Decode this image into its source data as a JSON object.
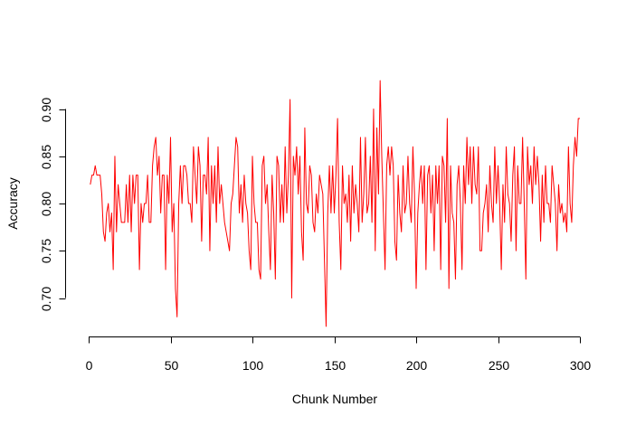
{
  "chart_data": {
    "type": "line",
    "title": "",
    "xlabel": "Chunk Number",
    "ylabel": "Accuracy",
    "xlim": [
      0,
      300
    ],
    "ylim": [
      0.66,
      0.935
    ],
    "x_ticks": [
      0,
      50,
      100,
      150,
      200,
      250,
      300
    ],
    "x_tick_labels": [
      "0",
      "50",
      "100",
      "150",
      "200",
      "250",
      "300"
    ],
    "y_ticks": [
      0.7,
      0.75,
      0.8,
      0.85,
      0.9
    ],
    "y_tick_labels": [
      "0.70",
      "0.75",
      "0.80",
      "0.85",
      "0.90"
    ],
    "grid": false,
    "series": [
      {
        "color": "#ff0000",
        "x_start": 1,
        "x_step": 1,
        "values": [
          0.82,
          0.83,
          0.83,
          0.84,
          0.83,
          0.83,
          0.83,
          0.81,
          0.77,
          0.76,
          0.79,
          0.8,
          0.77,
          0.79,
          0.73,
          0.85,
          0.77,
          0.82,
          0.8,
          0.78,
          0.78,
          0.78,
          0.82,
          0.78,
          0.83,
          0.77,
          0.83,
          0.8,
          0.83,
          0.83,
          0.73,
          0.8,
          0.78,
          0.8,
          0.8,
          0.83,
          0.78,
          0.78,
          0.84,
          0.86,
          0.87,
          0.83,
          0.85,
          0.79,
          0.83,
          0.83,
          0.73,
          0.83,
          0.8,
          0.87,
          0.77,
          0.8,
          0.71,
          0.68,
          0.8,
          0.84,
          0.8,
          0.84,
          0.84,
          0.83,
          0.8,
          0.8,
          0.78,
          0.86,
          0.83,
          0.8,
          0.86,
          0.84,
          0.76,
          0.83,
          0.83,
          0.81,
          0.87,
          0.75,
          0.84,
          0.8,
          0.84,
          0.78,
          0.86,
          0.8,
          0.82,
          0.8,
          0.78,
          0.77,
          0.76,
          0.75,
          0.8,
          0.81,
          0.84,
          0.87,
          0.86,
          0.79,
          0.82,
          0.78,
          0.83,
          0.8,
          0.79,
          0.75,
          0.73,
          0.85,
          0.8,
          0.78,
          0.78,
          0.73,
          0.72,
          0.84,
          0.85,
          0.8,
          0.82,
          0.77,
          0.73,
          0.83,
          0.79,
          0.72,
          0.85,
          0.84,
          0.78,
          0.82,
          0.78,
          0.86,
          0.79,
          0.83,
          0.91,
          0.7,
          0.85,
          0.83,
          0.86,
          0.81,
          0.85,
          0.77,
          0.74,
          0.88,
          0.8,
          0.79,
          0.84,
          0.83,
          0.78,
          0.77,
          0.81,
          0.79,
          0.83,
          0.82,
          0.81,
          0.74,
          0.67,
          0.79,
          0.84,
          0.79,
          0.84,
          0.79,
          0.83,
          0.89,
          0.78,
          0.73,
          0.84,
          0.8,
          0.81,
          0.78,
          0.83,
          0.76,
          0.84,
          0.79,
          0.82,
          0.8,
          0.77,
          0.87,
          0.78,
          0.81,
          0.87,
          0.79,
          0.8,
          0.85,
          0.78,
          0.9,
          0.75,
          0.88,
          0.81,
          0.93,
          0.85,
          0.79,
          0.73,
          0.84,
          0.86,
          0.83,
          0.86,
          0.84,
          0.76,
          0.74,
          0.83,
          0.79,
          0.77,
          0.84,
          0.79,
          0.8,
          0.85,
          0.8,
          0.78,
          0.86,
          0.81,
          0.71,
          0.79,
          0.82,
          0.84,
          0.8,
          0.84,
          0.73,
          0.83,
          0.84,
          0.79,
          0.83,
          0.75,
          0.84,
          0.8,
          0.84,
          0.73,
          0.85,
          0.84,
          0.78,
          0.89,
          0.71,
          0.84,
          0.79,
          0.78,
          0.72,
          0.82,
          0.84,
          0.8,
          0.73,
          0.84,
          0.8,
          0.87,
          0.82,
          0.86,
          0.8,
          0.86,
          0.82,
          0.81,
          0.86,
          0.75,
          0.75,
          0.79,
          0.8,
          0.82,
          0.77,
          0.84,
          0.8,
          0.78,
          0.86,
          0.8,
          0.84,
          0.8,
          0.73,
          0.82,
          0.78,
          0.86,
          0.81,
          0.8,
          0.76,
          0.83,
          0.86,
          0.75,
          0.84,
          0.8,
          0.8,
          0.87,
          0.8,
          0.72,
          0.86,
          0.82,
          0.84,
          0.8,
          0.86,
          0.82,
          0.85,
          0.82,
          0.76,
          0.83,
          0.78,
          0.84,
          0.8,
          0.8,
          0.78,
          0.84,
          0.82,
          0.8,
          0.75,
          0.82,
          0.79,
          0.8,
          0.78,
          0.79,
          0.77,
          0.86,
          0.8,
          0.78,
          0.84,
          0.87,
          0.85,
          0.89,
          0.89
        ]
      }
    ]
  }
}
